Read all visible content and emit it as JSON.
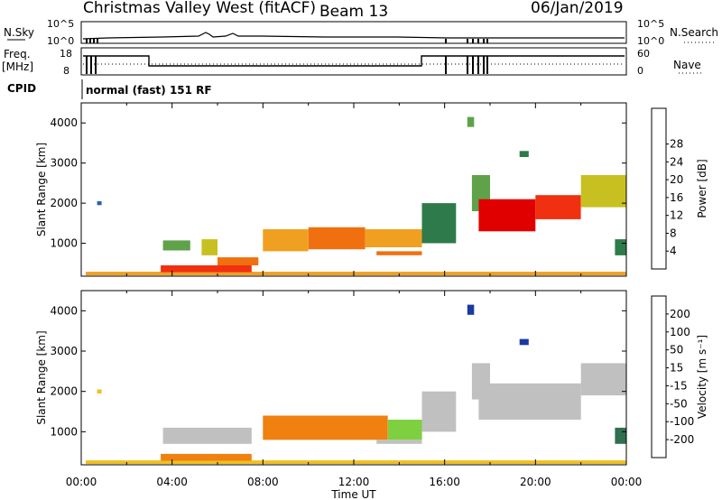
{
  "header": {
    "station": "Christmas Valley West (fitACF)",
    "beam": "Beam 13",
    "date": "06/Jan/2019"
  },
  "side_labels": {
    "nsky": "N.Sky",
    "nsearch": "N.Search",
    "freq": "Freq.",
    "freq_unit": "[MHz]",
    "nave": "Nave",
    "cpid": "CPID",
    "cpid_text": "normal (fast) 151 RF"
  },
  "strip_ticks": {
    "noise_top": "10^5",
    "noise_bottom": "10^0",
    "freq_top": "18",
    "freq_bottom": "8",
    "nave_top": "60",
    "nave_bottom": "0"
  },
  "chart_data": [
    {
      "type": "heatmap",
      "title": "",
      "xlabel": "Time UT",
      "ylabel": "Slant Range [km]",
      "x_ticks": [
        "00:00",
        "04:00",
        "08:00",
        "12:00",
        "16:00",
        "20:00",
        "00:00"
      ],
      "xlim_hours": [
        0,
        24
      ],
      "y_ticks": [
        1000,
        2000,
        3000,
        4000
      ],
      "ylim": [
        180,
        4500
      ],
      "colorbar": {
        "label": "Power [dB]",
        "ticks": [
          "4",
          "8",
          "12",
          "16",
          "20",
          "24",
          "28"
        ],
        "colors": [
          "#1010e0",
          "#2e5fb8",
          "#2f7a4a",
          "#5fa24a",
          "#c8c020",
          "#f0a020",
          "#f07010",
          "#f03010",
          "#e00000"
        ]
      },
      "regions": [
        {
          "t0": 0.7,
          "t1": 0.9,
          "r0": 1950,
          "r1": 2050,
          "level": 1
        },
        {
          "t0": 0.2,
          "t1": 24.0,
          "r0": 200,
          "r1": 290,
          "level": 5
        },
        {
          "t0": 3.5,
          "t1": 7.5,
          "r0": 280,
          "r1": 450,
          "level": 7
        },
        {
          "t0": 3.6,
          "t1": 4.8,
          "r0": 820,
          "r1": 1070,
          "level": 3
        },
        {
          "t0": 5.3,
          "t1": 6.0,
          "r0": 700,
          "r1": 1100,
          "level": 4
        },
        {
          "t0": 6.0,
          "t1": 7.8,
          "r0": 450,
          "r1": 650,
          "level": 6
        },
        {
          "t0": 8.0,
          "t1": 10.0,
          "r0": 800,
          "r1": 1350,
          "level": 5
        },
        {
          "t0": 10.0,
          "t1": 12.5,
          "r0": 850,
          "r1": 1400,
          "level": 6
        },
        {
          "t0": 12.5,
          "t1": 15.0,
          "r0": 900,
          "r1": 1350,
          "level": 5
        },
        {
          "t0": 13.0,
          "t1": 15.0,
          "r0": 700,
          "r1": 800,
          "level": 6
        },
        {
          "t0": 15.0,
          "t1": 16.5,
          "r0": 1000,
          "r1": 2000,
          "level": 2
        },
        {
          "t0": 17.0,
          "t1": 17.3,
          "r0": 3900,
          "r1": 4150,
          "level": 3
        },
        {
          "t0": 17.2,
          "t1": 18.0,
          "r0": 1800,
          "r1": 2700,
          "level": 3
        },
        {
          "t0": 17.5,
          "t1": 20.0,
          "r0": 1300,
          "r1": 2100,
          "level": 8
        },
        {
          "t0": 19.3,
          "t1": 19.7,
          "r0": 3150,
          "r1": 3300,
          "level": 2
        },
        {
          "t0": 20.0,
          "t1": 22.0,
          "r0": 1600,
          "r1": 2200,
          "level": 7
        },
        {
          "t0": 22.0,
          "t1": 24.0,
          "r0": 1900,
          "r1": 2700,
          "level": 4
        },
        {
          "t0": 23.5,
          "t1": 24.0,
          "r0": 700,
          "r1": 1100,
          "level": 2
        }
      ]
    },
    {
      "type": "heatmap",
      "title": "",
      "xlabel": "Time UT",
      "ylabel": "Slant Range [km]",
      "x_ticks": [
        "00:00",
        "04:00",
        "08:00",
        "12:00",
        "16:00",
        "20:00",
        "00:00"
      ],
      "xlim_hours": [
        0,
        24
      ],
      "y_ticks": [
        1000,
        2000,
        3000,
        4000
      ],
      "ylim": [
        180,
        4500
      ],
      "colorbar": {
        "label": "Velocity [m s⁻¹]",
        "ticks": [
          "200",
          "100",
          "50",
          "15",
          "-15",
          "-50",
          "-100",
          "-200"
        ],
        "colors": [
          "#1a3aa0",
          "#2e7050",
          "#3a9a30",
          "#7fd040",
          "#c0c0c0",
          "#f0c020",
          "#f08010",
          "#f04010",
          "#e00000"
        ]
      },
      "regions": [
        {
          "t0": 0.7,
          "t1": 0.9,
          "r0": 1950,
          "r1": 2050,
          "level": 5
        },
        {
          "t0": 0.2,
          "t1": 24.0,
          "r0": 200,
          "r1": 290,
          "level": 5
        },
        {
          "t0": 3.5,
          "t1": 7.5,
          "r0": 280,
          "r1": 450,
          "level": 6
        },
        {
          "t0": 3.6,
          "t1": 7.5,
          "r0": 700,
          "r1": 1100,
          "level": 4
        },
        {
          "t0": 8.0,
          "t1": 13.5,
          "r0": 800,
          "r1": 1400,
          "level": 6
        },
        {
          "t0": 13.5,
          "t1": 15.0,
          "r0": 800,
          "r1": 1300,
          "level": 3
        },
        {
          "t0": 13.0,
          "t1": 15.0,
          "r0": 700,
          "r1": 800,
          "level": 4
        },
        {
          "t0": 15.0,
          "t1": 16.5,
          "r0": 1000,
          "r1": 2000,
          "level": 4
        },
        {
          "t0": 17.0,
          "t1": 17.3,
          "r0": 3900,
          "r1": 4150,
          "level": 0
        },
        {
          "t0": 17.2,
          "t1": 18.0,
          "r0": 1800,
          "r1": 2700,
          "level": 4
        },
        {
          "t0": 17.5,
          "t1": 22.0,
          "r0": 1300,
          "r1": 2200,
          "level": 4
        },
        {
          "t0": 19.3,
          "t1": 19.7,
          "r0": 3150,
          "r1": 3300,
          "level": 0
        },
        {
          "t0": 22.0,
          "t1": 24.0,
          "r0": 1900,
          "r1": 2700,
          "level": 4
        },
        {
          "t0": 23.5,
          "t1": 24.0,
          "r0": 700,
          "r1": 1100,
          "level": 1
        }
      ]
    }
  ]
}
